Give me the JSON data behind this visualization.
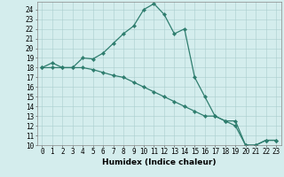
{
  "line1_x": [
    0,
    1,
    2,
    3,
    4,
    5,
    6,
    7,
    8,
    9,
    10,
    11,
    12,
    13,
    14,
    15,
    16,
    17,
    18,
    19,
    20,
    21,
    22,
    23
  ],
  "line1_y": [
    18,
    18.5,
    18,
    18,
    19,
    18.9,
    19.5,
    20.5,
    21.5,
    22.3,
    24.0,
    24.6,
    23.5,
    21.5,
    22,
    17,
    15.0,
    13.0,
    12.5,
    12.5,
    10,
    10,
    10.5,
    10.5
  ],
  "line2_x": [
    0,
    1,
    2,
    3,
    4,
    5,
    6,
    7,
    8,
    9,
    10,
    11,
    12,
    13,
    14,
    15,
    16,
    17,
    18,
    19,
    20,
    21,
    22,
    23
  ],
  "line2_y": [
    18,
    18,
    18,
    18,
    18,
    17.8,
    17.5,
    17.2,
    17.0,
    16.5,
    16.0,
    15.5,
    15.0,
    14.5,
    14.0,
    13.5,
    13.0,
    13.0,
    12.5,
    12.0,
    10.0,
    10.0,
    10.5,
    10.5
  ],
  "line_color": "#2e7d6e",
  "marker": "D",
  "markersize": 2.2,
  "linewidth": 0.9,
  "xlabel": "Humidex (Indice chaleur)",
  "xlim": [
    -0.5,
    23.5
  ],
  "ylim": [
    10,
    24.8
  ],
  "xticks": [
    0,
    1,
    2,
    3,
    4,
    5,
    6,
    7,
    8,
    9,
    10,
    11,
    12,
    13,
    14,
    15,
    16,
    17,
    18,
    19,
    20,
    21,
    22,
    23
  ],
  "yticks": [
    10,
    11,
    12,
    13,
    14,
    15,
    16,
    17,
    18,
    19,
    20,
    21,
    22,
    23,
    24
  ],
  "bg_color": "#d4eded",
  "grid_color": "#aacece",
  "xlabel_fontsize": 6.5,
  "tick_fontsize": 5.5
}
